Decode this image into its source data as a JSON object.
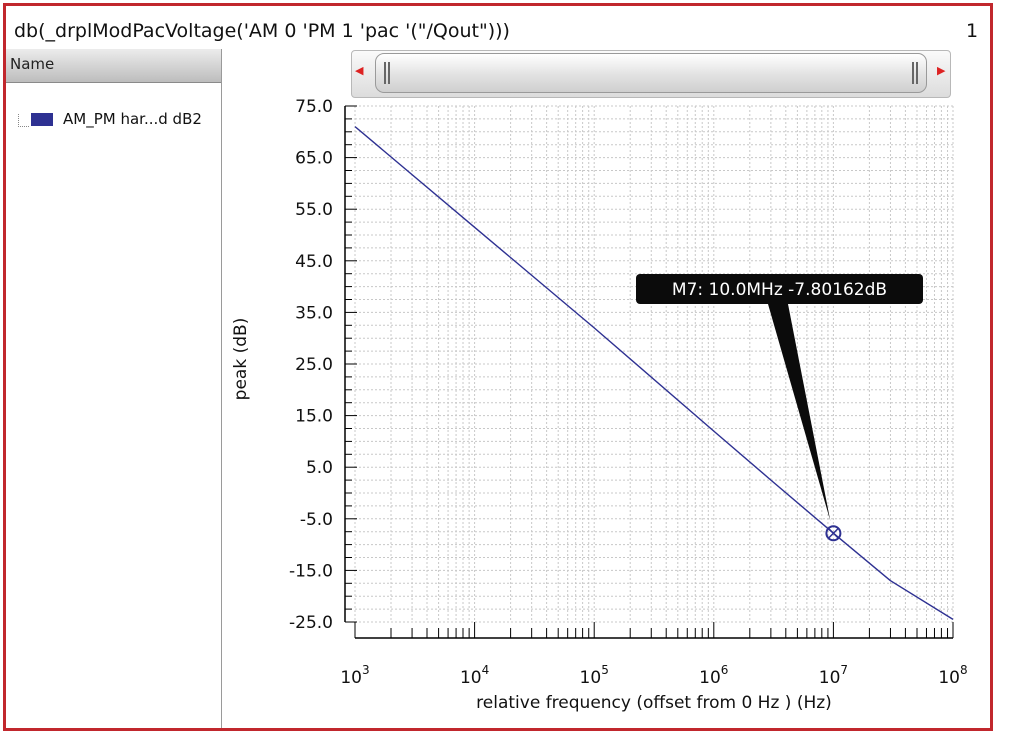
{
  "window": {
    "title": "db(_drplModPacVoltage('AM 0 'PM 1 'pac '(\"/Qout\")))",
    "page_number": "1"
  },
  "legend": {
    "header": "Name",
    "items": [
      {
        "label": "AM_PM har...d dB2",
        "color": "#2e3192"
      }
    ]
  },
  "colors": {
    "frame_border": "#c1272d",
    "trace": "#2e3192",
    "marker_tag_bg": "#0b0b0b",
    "marker_tag_text": "#ffffff"
  },
  "chart_data": {
    "type": "line",
    "title": "",
    "xlabel": "relative frequency (offset from 0 Hz ) (Hz)",
    "ylabel": "peak (dB)",
    "x_scale": "log",
    "xlim": [
      1000,
      100000000
    ],
    "ylim": [
      -25,
      75
    ],
    "grid": true,
    "y_ticks": [
      75.0,
      65.0,
      55.0,
      45.0,
      35.0,
      25.0,
      15.0,
      5.0,
      -5.0,
      -15.0,
      -25.0
    ],
    "y_tick_labels": [
      "75.0",
      "65.0",
      "55.0",
      "45.0",
      "35.0",
      "25.0",
      "15.0",
      "5.0",
      "-5.0",
      "-15.0",
      "-25.0"
    ],
    "x_tick_values": [
      1000,
      10000,
      100000,
      1000000,
      10000000,
      100000000
    ],
    "x_tick_labels": [
      {
        "base": "10",
        "exp": "3"
      },
      {
        "base": "10",
        "exp": "4"
      },
      {
        "base": "10",
        "exp": "5"
      },
      {
        "base": "10",
        "exp": "6"
      },
      {
        "base": "10",
        "exp": "7"
      },
      {
        "base": "10",
        "exp": "8"
      }
    ],
    "series": [
      {
        "name": "AM_PM har...d dB2",
        "x": [
          1000,
          10000,
          100000,
          1000000,
          3000000,
          10000000,
          30000000,
          100000000
        ],
        "values": [
          71,
          51.5,
          32,
          12,
          2.5,
          -7.8,
          -17,
          -24.5
        ]
      }
    ],
    "markers": [
      {
        "label": "M7: 10.0MHz -7.80162dB",
        "x": 10000000,
        "y": -7.80162
      }
    ]
  }
}
